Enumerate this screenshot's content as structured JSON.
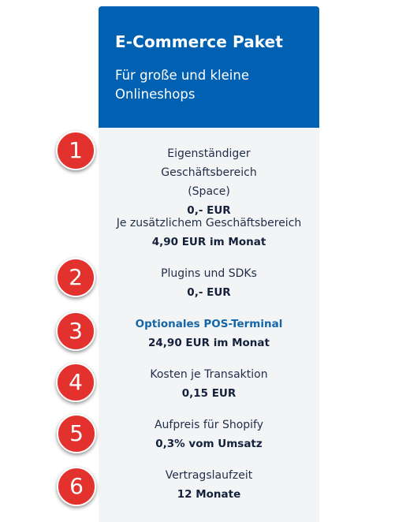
{
  "card": {
    "title": "E-Commerce Paket",
    "subtitle": "Für große und kleine Onlineshops",
    "features": [
      {
        "label": "Eigenständiger Geschäftsbereich (Space)",
        "value": "0,- EUR"
      },
      {
        "label": "Je zusätzlichem Geschäftsbereich",
        "value": "4,90 EUR im Monat"
      },
      {
        "label": "Plugins und SDKs",
        "value": "0,- EUR"
      },
      {
        "label": "Optionales POS-Terminal",
        "value": "24,90 EUR im Monat"
      },
      {
        "label": "Kosten je Transaktion",
        "value": "0,15 EUR"
      },
      {
        "label": "Aufpreis für Shopify",
        "value": "0,3% vom Umsatz"
      },
      {
        "label": "Vertragslaufzeit",
        "value": "12 Monate"
      }
    ]
  },
  "markers": [
    "1",
    "2",
    "3",
    "4",
    "5",
    "6"
  ],
  "colors": {
    "header_bg": "#0060b2",
    "card_bg": "#f3f4f6",
    "marker_red": "#e3312e",
    "link_blue": "#1466a8",
    "text_navy": "#14213d"
  }
}
